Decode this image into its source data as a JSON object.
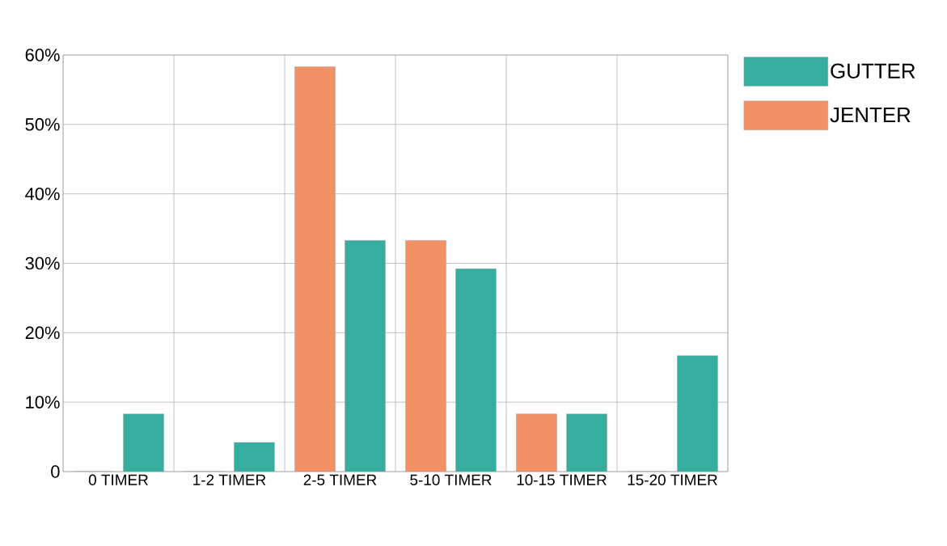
{
  "chart_data": {
    "type": "bar",
    "categories": [
      "0 TIMER",
      "1-2 TIMER",
      "2-5 TIMER",
      "5-10 TIMER",
      "10-15 TIMER",
      "15-20 TIMER"
    ],
    "series": [
      {
        "name": "JENTER",
        "color": "#f29066",
        "values": [
          0,
          0,
          58.3,
          33.3,
          8.3,
          0
        ]
      },
      {
        "name": "GUTTER",
        "color": "#35ae9f",
        "values": [
          8.3,
          4.2,
          33.3,
          29.2,
          8.3,
          16.7
        ]
      }
    ],
    "ylim": [
      0,
      60
    ],
    "yticks": [
      0,
      {
        "value": 10,
        "label": "10%"
      },
      {
        "value": 20,
        "label": "20%"
      },
      {
        "value": 30,
        "label": "30%"
      },
      {
        "value": 40,
        "label": "40%"
      },
      {
        "value": 50,
        "label": "50%"
      },
      {
        "value": 60,
        "label": "60%"
      }
    ],
    "grid": true,
    "legend": "right"
  }
}
